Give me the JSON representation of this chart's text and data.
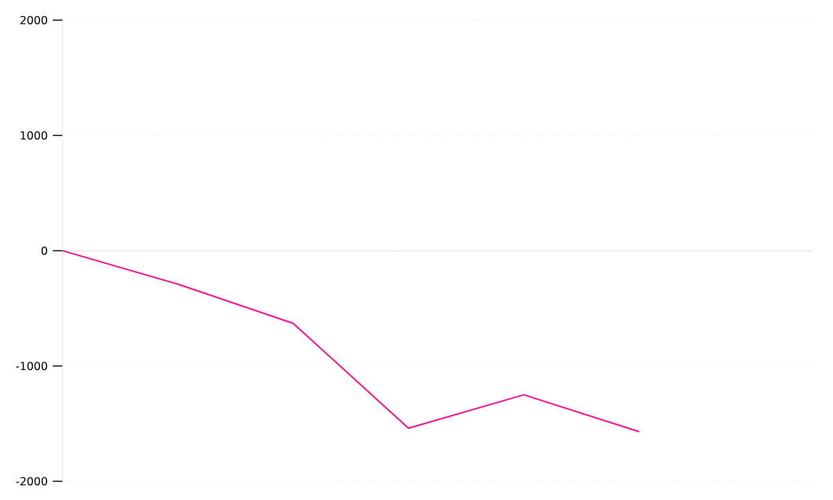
{
  "chart_data": {
    "type": "line",
    "categories": [
      null,
      null,
      null,
      null,
      null,
      null
    ],
    "series": [
      {
        "color": "#ff1493",
        "values": [
          0,
          -290,
          -630,
          -1540,
          -1250,
          -1570
        ]
      }
    ],
    "ylim": [
      -2000,
      2000
    ],
    "yticks": [
      -2000,
      -1000,
      0,
      1000,
      2000
    ],
    "grid": "y",
    "tick_labels": "y",
    "marker": "none",
    "line_style": "solid"
  }
}
